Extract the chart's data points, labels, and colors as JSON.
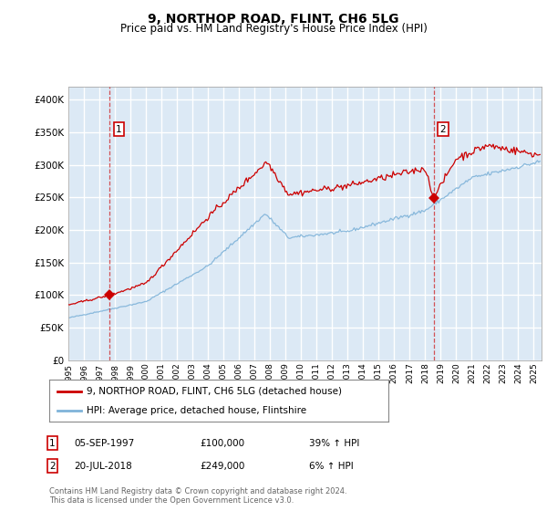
{
  "title": "9, NORTHOP ROAD, FLINT, CH6 5LG",
  "subtitle": "Price paid vs. HM Land Registry's House Price Index (HPI)",
  "background_color": "#dce9f5",
  "plot_bg": "#dce9f5",
  "red_line_color": "#cc0000",
  "blue_line_color": "#7fb3d9",
  "grid_color": "#ffffff",
  "ylim": [
    0,
    420000
  ],
  "yticks": [
    0,
    50000,
    100000,
    150000,
    200000,
    250000,
    300000,
    350000,
    400000
  ],
  "ytick_labels": [
    "£0",
    "£50K",
    "£100K",
    "£150K",
    "£200K",
    "£250K",
    "£300K",
    "£350K",
    "£400K"
  ],
  "sale1_date": 1997.67,
  "sale1_price": 100000,
  "sale1_label": "1",
  "sale2_date": 2018.54,
  "sale2_price": 249000,
  "sale2_label": "2",
  "legend_line1": "9, NORTHOP ROAD, FLINT, CH6 5LG (detached house)",
  "legend_line2": "HPI: Average price, detached house, Flintshire",
  "table_row1_num": "1",
  "table_row1_date": "05-SEP-1997",
  "table_row1_price": "£100,000",
  "table_row1_hpi": "39% ↑ HPI",
  "table_row2_num": "2",
  "table_row2_date": "20-JUL-2018",
  "table_row2_price": "£249,000",
  "table_row2_hpi": "6% ↑ HPI",
  "footer": "Contains HM Land Registry data © Crown copyright and database right 2024.\nThis data is licensed under the Open Government Licence v3.0.",
  "xmin": 1995.0,
  "xmax": 2025.5
}
